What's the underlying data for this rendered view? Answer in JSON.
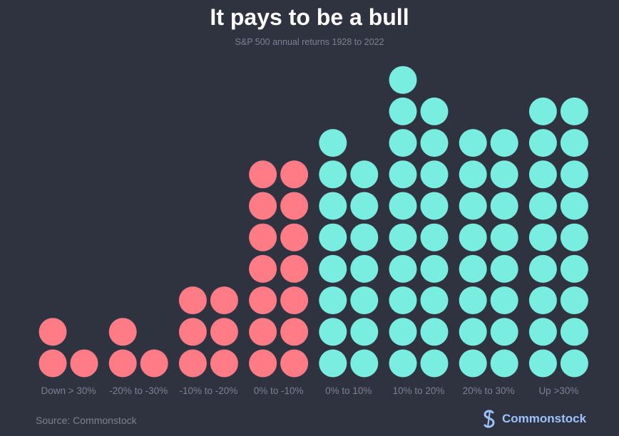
{
  "title": "It pays to be a bull",
  "subtitle": "S&P 500 annual returns 1928 to 2022",
  "source": "Source: Commonstock",
  "brand": {
    "name": "Commonstock",
    "logo_icon": "commonstock-logo-icon"
  },
  "colors": {
    "background": "#2f3340",
    "negative": "#ff7b85",
    "positive": "#79ede0",
    "label": "#7d8190",
    "brand": "#9cc3ff"
  },
  "chart_data": {
    "type": "bar",
    "style": "dot-stack",
    "categories": [
      "Down > 30%",
      "-20% to -30%",
      "-10% to -20%",
      "0% to -10%",
      "0% to 10%",
      "10% to 20%",
      "20% to 30%",
      "Up >30%"
    ],
    "values": [
      3,
      3,
      6,
      14,
      15,
      19,
      16,
      18
    ],
    "colors": [
      "#ff7b85",
      "#ff7b85",
      "#ff7b85",
      "#ff7b85",
      "#79ede0",
      "#79ede0",
      "#79ede0",
      "#79ede0"
    ],
    "dots_per_row": 2,
    "title": "It pays to be a bull",
    "subtitle": "S&P 500 annual returns 1928 to 2022",
    "xlabel": "",
    "ylabel": "",
    "grid": false,
    "legend": "none"
  }
}
